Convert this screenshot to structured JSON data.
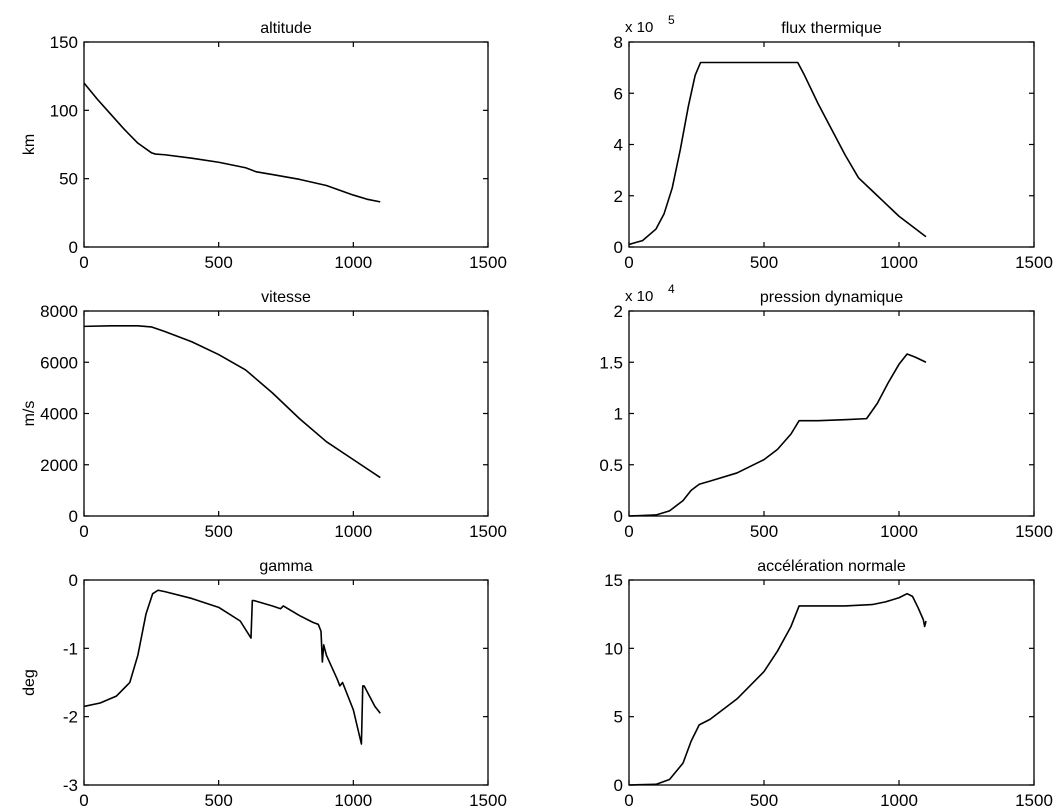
{
  "chart_data": [
    {
      "type": "line",
      "title": "altitude",
      "ylabel": "km",
      "exponent": "",
      "xlim": [
        0,
        1500
      ],
      "ylim": [
        0,
        150
      ],
      "xticks": [
        0,
        500,
        1000,
        1500
      ],
      "yticks": [
        0,
        50,
        100,
        150
      ],
      "xticklabels": [
        "0",
        "500",
        "1000",
        "1500"
      ],
      "yticklabels": [
        "0",
        "50",
        "100",
        "150"
      ],
      "x": [
        0,
        50,
        100,
        150,
        200,
        250,
        265,
        300,
        400,
        500,
        600,
        640,
        700,
        800,
        900,
        1000,
        1050,
        1100
      ],
      "y": [
        120,
        108,
        97,
        86,
        76,
        69,
        68,
        67.5,
        65,
        62,
        58,
        55,
        53,
        49.5,
        45,
        38,
        35,
        33
      ]
    },
    {
      "type": "line",
      "title": "flux thermique",
      "ylabel": "",
      "exponent": "x 10",
      "exponent_power": "5",
      "xlim": [
        0,
        1500
      ],
      "ylim": [
        0,
        8
      ],
      "xticks": [
        0,
        500,
        1000,
        1500
      ],
      "yticks": [
        0,
        2,
        4,
        6,
        8
      ],
      "xticklabels": [
        "0",
        "500",
        "1000",
        "1500"
      ],
      "yticklabels": [
        "0",
        "2",
        "4",
        "6",
        "8"
      ],
      "x": [
        0,
        50,
        100,
        130,
        160,
        190,
        220,
        245,
        265,
        300,
        400,
        500,
        600,
        625,
        650,
        700,
        750,
        800,
        850,
        900,
        950,
        1000,
        1050,
        1100
      ],
      "y": [
        0.1,
        0.25,
        0.7,
        1.3,
        2.3,
        3.8,
        5.5,
        6.7,
        7.2,
        7.2,
        7.2,
        7.2,
        7.2,
        7.2,
        6.7,
        5.6,
        4.6,
        3.6,
        2.7,
        2.2,
        1.7,
        1.2,
        0.8,
        0.4
      ]
    },
    {
      "type": "line",
      "title": "vitesse",
      "ylabel": "m/s",
      "exponent": "",
      "xlim": [
        0,
        1500
      ],
      "ylim": [
        0,
        8000
      ],
      "xticks": [
        0,
        500,
        1000,
        1500
      ],
      "yticks": [
        0,
        2000,
        4000,
        6000,
        8000
      ],
      "xticklabels": [
        "0",
        "500",
        "1000",
        "1500"
      ],
      "yticklabels": [
        "0",
        "2000",
        "4000",
        "6000",
        "8000"
      ],
      "x": [
        0,
        100,
        200,
        250,
        300,
        400,
        500,
        600,
        700,
        800,
        900,
        1000,
        1100
      ],
      "y": [
        7400,
        7420,
        7420,
        7380,
        7200,
        6800,
        6300,
        5700,
        4800,
        3800,
        2900,
        2200,
        1500
      ]
    },
    {
      "type": "line",
      "title": "pression dynamique",
      "ylabel": "",
      "exponent": "x 10",
      "exponent_power": "4",
      "xlim": [
        0,
        1500
      ],
      "ylim": [
        0,
        2
      ],
      "xticks": [
        0,
        500,
        1000,
        1500
      ],
      "yticks": [
        0,
        0.5,
        1,
        1.5,
        2
      ],
      "xticklabels": [
        "0",
        "500",
        "1000",
        "1500"
      ],
      "yticklabels": [
        "0",
        "0.5",
        "1",
        "1.5",
        "2"
      ],
      "x": [
        0,
        100,
        150,
        200,
        230,
        260,
        300,
        400,
        500,
        550,
        600,
        630,
        700,
        800,
        880,
        920,
        960,
        1000,
        1030,
        1060,
        1100
      ],
      "y": [
        0,
        0.01,
        0.05,
        0.15,
        0.25,
        0.31,
        0.34,
        0.42,
        0.55,
        0.65,
        0.8,
        0.93,
        0.93,
        0.94,
        0.95,
        1.1,
        1.3,
        1.48,
        1.58,
        1.55,
        1.5
      ]
    },
    {
      "type": "line",
      "title": "gamma",
      "ylabel": "deg",
      "exponent": "",
      "xlim": [
        0,
        1500
      ],
      "ylim": [
        -3,
        0
      ],
      "xticks": [
        0,
        500,
        1000,
        1500
      ],
      "yticks": [
        -3,
        -2,
        -1,
        0
      ],
      "xticklabels": [
        "0",
        "500",
        "1000",
        "1500"
      ],
      "yticklabels": [
        "-3",
        "-2",
        "-1",
        "0"
      ],
      "x": [
        0,
        60,
        120,
        170,
        200,
        230,
        255,
        275,
        300,
        400,
        500,
        580,
        620,
        625,
        630,
        700,
        730,
        740,
        800,
        850,
        870,
        880,
        885,
        890,
        900,
        940,
        950,
        960,
        1000,
        1030,
        1035,
        1040,
        1060,
        1080,
        1100
      ],
      "y": [
        -1.85,
        -1.8,
        -1.7,
        -1.5,
        -1.1,
        -0.5,
        -0.2,
        -0.15,
        -0.17,
        -0.27,
        -0.4,
        -0.6,
        -0.85,
        -0.3,
        -0.3,
        -0.38,
        -0.42,
        -0.38,
        -0.52,
        -0.62,
        -0.65,
        -0.75,
        -1.2,
        -0.95,
        -1.1,
        -1.45,
        -1.55,
        -1.5,
        -1.9,
        -2.4,
        -1.55,
        -1.55,
        -1.7,
        -1.85,
        -1.95
      ]
    },
    {
      "type": "line",
      "title": "accélération normale",
      "ylabel": "",
      "exponent": "",
      "xlim": [
        0,
        1500
      ],
      "ylim": [
        0,
        15
      ],
      "xticks": [
        0,
        500,
        1000,
        1500
      ],
      "yticks": [
        0,
        5,
        10,
        15
      ],
      "xticklabels": [
        "0",
        "500",
        "1000",
        "1500"
      ],
      "yticklabels": [
        "0",
        "5",
        "10",
        "15"
      ],
      "x": [
        0,
        100,
        150,
        200,
        230,
        260,
        300,
        400,
        500,
        550,
        600,
        630,
        700,
        800,
        900,
        950,
        1000,
        1030,
        1050,
        1070,
        1090,
        1095,
        1100
      ],
      "y": [
        0,
        0.05,
        0.4,
        1.6,
        3.2,
        4.4,
        4.8,
        6.3,
        8.3,
        9.8,
        11.6,
        13.1,
        13.1,
        13.1,
        13.2,
        13.4,
        13.7,
        14.0,
        13.8,
        13.0,
        12.1,
        11.6,
        12.0
      ]
    }
  ]
}
